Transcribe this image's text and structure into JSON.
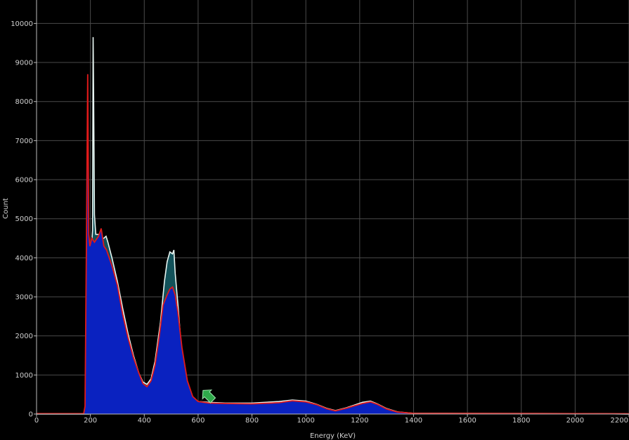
{
  "chart_data": {
    "type": "area",
    "xlabel": "Energy (KeV)",
    "ylabel": "Count",
    "xlim": [
      0,
      2200
    ],
    "ylim": [
      0,
      10600
    ],
    "x_ticks": [
      0,
      200,
      400,
      600,
      800,
      1000,
      1200,
      1400,
      1600,
      1800,
      2000,
      2200
    ],
    "y_ticks": [
      0,
      1000,
      2000,
      3000,
      4000,
      5000,
      6000,
      7000,
      8000,
      9000,
      10000
    ],
    "grid": true,
    "cursor_marker": {
      "x": 655,
      "y": 350,
      "color": "#2ea84a"
    },
    "colors": {
      "background": "#000000",
      "grid": "#4a4a4a",
      "axis": "#bdbdbd",
      "teal_fill": "#12525a",
      "white_line": "#e8f6f2",
      "blue_fill": "#0a22c0",
      "blue_line": "#4a6aff",
      "red_line": "#e01a1a"
    },
    "series": [
      {
        "name": "",
        "style": "teal-fill-white-outline",
        "points": [
          [
            0,
            0
          ],
          [
            180,
            0
          ],
          [
            195,
            0
          ],
          [
            200,
            300
          ],
          [
            205,
            4400
          ],
          [
            208,
            4700
          ],
          [
            210,
            9650
          ],
          [
            212,
            8200
          ],
          [
            215,
            5100
          ],
          [
            220,
            4600
          ],
          [
            230,
            4600
          ],
          [
            240,
            4500
          ],
          [
            250,
            4500
          ],
          [
            258,
            4550
          ],
          [
            265,
            4400
          ],
          [
            280,
            4000
          ],
          [
            300,
            3400
          ],
          [
            320,
            2700
          ],
          [
            340,
            2050
          ],
          [
            360,
            1500
          ],
          [
            380,
            1050
          ],
          [
            395,
            820
          ],
          [
            410,
            760
          ],
          [
            425,
            900
          ],
          [
            440,
            1350
          ],
          [
            460,
            2350
          ],
          [
            475,
            3400
          ],
          [
            485,
            3900
          ],
          [
            495,
            4150
          ],
          [
            505,
            4100
          ],
          [
            510,
            4200
          ],
          [
            515,
            3600
          ],
          [
            525,
            2800
          ],
          [
            540,
            1500
          ],
          [
            555,
            700
          ],
          [
            570,
            400
          ],
          [
            600,
            320
          ],
          [
            640,
            300
          ],
          [
            700,
            280
          ],
          [
            800,
            280
          ],
          [
            900,
            320
          ],
          [
            950,
            360
          ],
          [
            1000,
            330
          ],
          [
            1040,
            250
          ],
          [
            1080,
            140
          ],
          [
            1110,
            90
          ],
          [
            1150,
            160
          ],
          [
            1180,
            230
          ],
          [
            1210,
            300
          ],
          [
            1240,
            330
          ],
          [
            1265,
            260
          ],
          [
            1300,
            140
          ],
          [
            1340,
            55
          ],
          [
            1400,
            20
          ],
          [
            1600,
            18
          ],
          [
            1800,
            15
          ],
          [
            2000,
            12
          ],
          [
            2100,
            10
          ],
          [
            2200,
            0
          ]
        ]
      },
      {
        "name": "",
        "style": "blue-fill",
        "points": [
          [
            0,
            0
          ],
          [
            175,
            0
          ],
          [
            180,
            200
          ],
          [
            185,
            4200
          ],
          [
            190,
            8700
          ],
          [
            194,
            4600
          ],
          [
            198,
            4300
          ],
          [
            205,
            4500
          ],
          [
            215,
            4400
          ],
          [
            230,
            4550
          ],
          [
            240,
            4750
          ],
          [
            250,
            4300
          ],
          [
            260,
            4200
          ],
          [
            280,
            3800
          ],
          [
            300,
            3300
          ],
          [
            320,
            2550
          ],
          [
            340,
            1950
          ],
          [
            360,
            1450
          ],
          [
            380,
            1050
          ],
          [
            395,
            780
          ],
          [
            410,
            700
          ],
          [
            425,
            850
          ],
          [
            440,
            1250
          ],
          [
            455,
            1950
          ],
          [
            470,
            2800
          ],
          [
            485,
            3050
          ],
          [
            495,
            3200
          ],
          [
            505,
            3250
          ],
          [
            515,
            3050
          ],
          [
            525,
            2600
          ],
          [
            540,
            1700
          ],
          [
            560,
            850
          ],
          [
            580,
            450
          ],
          [
            600,
            320
          ],
          [
            640,
            280
          ],
          [
            700,
            270
          ],
          [
            800,
            260
          ],
          [
            900,
            290
          ],
          [
            950,
            340
          ],
          [
            1000,
            310
          ],
          [
            1040,
            240
          ],
          [
            1080,
            130
          ],
          [
            1110,
            80
          ],
          [
            1150,
            150
          ],
          [
            1180,
            210
          ],
          [
            1210,
            270
          ],
          [
            1240,
            310
          ],
          [
            1265,
            250
          ],
          [
            1300,
            130
          ],
          [
            1340,
            50
          ],
          [
            1400,
            18
          ],
          [
            1600,
            15
          ],
          [
            1800,
            12
          ],
          [
            2000,
            10
          ],
          [
            2200,
            0
          ]
        ]
      },
      {
        "name": "",
        "style": "red-line",
        "points": [
          [
            0,
            10
          ],
          [
            175,
            10
          ],
          [
            180,
            200
          ],
          [
            185,
            4200
          ],
          [
            190,
            8700
          ],
          [
            194,
            4600
          ],
          [
            198,
            4300
          ],
          [
            205,
            4500
          ],
          [
            215,
            4400
          ],
          [
            230,
            4550
          ],
          [
            240,
            4750
          ],
          [
            250,
            4300
          ],
          [
            260,
            4200
          ],
          [
            280,
            3800
          ],
          [
            300,
            3300
          ],
          [
            320,
            2550
          ],
          [
            340,
            1950
          ],
          [
            360,
            1450
          ],
          [
            380,
            1050
          ],
          [
            395,
            780
          ],
          [
            410,
            700
          ],
          [
            425,
            850
          ],
          [
            440,
            1250
          ],
          [
            455,
            1950
          ],
          [
            470,
            2800
          ],
          [
            485,
            3050
          ],
          [
            495,
            3200
          ],
          [
            505,
            3250
          ],
          [
            515,
            3050
          ],
          [
            525,
            2600
          ],
          [
            540,
            1700
          ],
          [
            560,
            850
          ],
          [
            580,
            450
          ],
          [
            600,
            320
          ],
          [
            640,
            280
          ],
          [
            700,
            270
          ],
          [
            800,
            260
          ],
          [
            900,
            290
          ],
          [
            950,
            340
          ],
          [
            1000,
            310
          ],
          [
            1040,
            240
          ],
          [
            1080,
            130
          ],
          [
            1110,
            80
          ],
          [
            1150,
            150
          ],
          [
            1180,
            210
          ],
          [
            1210,
            270
          ],
          [
            1240,
            310
          ],
          [
            1265,
            250
          ],
          [
            1300,
            130
          ],
          [
            1340,
            50
          ],
          [
            1400,
            18
          ],
          [
            1600,
            15
          ],
          [
            1800,
            12
          ],
          [
            2000,
            10
          ],
          [
            2200,
            8
          ]
        ]
      }
    ]
  }
}
